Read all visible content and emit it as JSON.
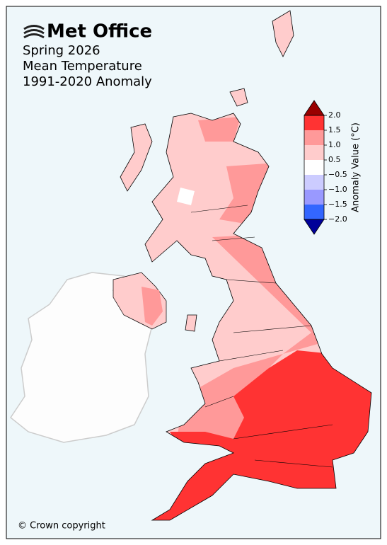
{
  "header": {
    "logo": "Met Office",
    "title_lines": [
      "Spring 2026",
      "Mean Temperature",
      "1991-2020 Anomaly"
    ]
  },
  "colorbar": {
    "label": "Anomaly Value (°C)",
    "ticks": [
      {
        "value": 2.0,
        "label": "2.0"
      },
      {
        "value": 1.5,
        "label": "1.5"
      },
      {
        "value": 1.0,
        "label": "1.0"
      },
      {
        "value": 0.5,
        "label": "0.5"
      },
      {
        "value": -0.5,
        "label": "−0.5"
      },
      {
        "value": -1.0,
        "label": "−1.0"
      },
      {
        "value": -1.5,
        "label": "−1.5"
      },
      {
        "value": -2.0,
        "label": "−2.0"
      }
    ],
    "colors": [
      "#ff3333",
      "#ff9999",
      "#ffcccc",
      "#ffffff",
      "#ccccff",
      "#9999ff",
      "#3366ff"
    ],
    "extend_colors": [
      "#990000",
      "#000099"
    ]
  },
  "footer": {
    "copyright": "© Crown copyright"
  }
}
